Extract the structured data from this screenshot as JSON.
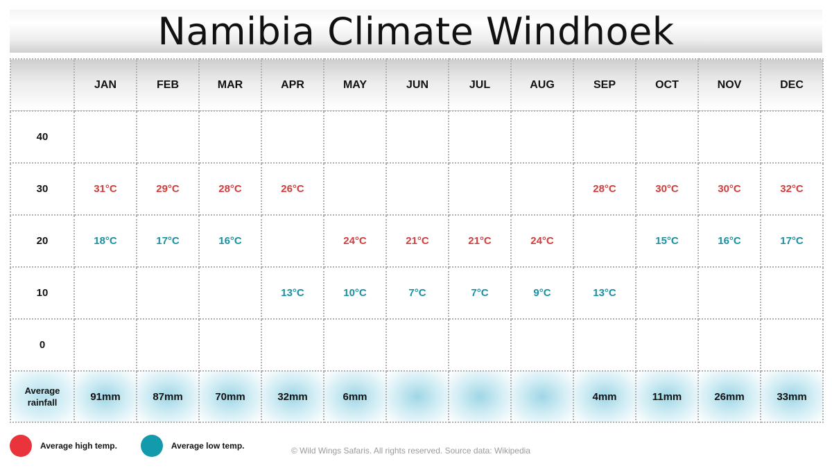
{
  "title": "Namibia Climate Windhoek",
  "chart_data": {
    "type": "table",
    "months": [
      "JAN",
      "FEB",
      "MAR",
      "APR",
      "MAY",
      "JUN",
      "JUL",
      "AUG",
      "SEP",
      "OCT",
      "NOV",
      "DEC"
    ],
    "scale_rows": [
      "40",
      "30",
      "20",
      "10",
      "0"
    ],
    "series": [
      {
        "name": "Average high temp.",
        "unit": "°C",
        "values": [
          31,
          29,
          28,
          26,
          24,
          21,
          21,
          24,
          28,
          30,
          30,
          32
        ]
      },
      {
        "name": "Average low temp.",
        "unit": "°C",
        "values": [
          18,
          17,
          16,
          13,
          10,
          7,
          7,
          9,
          13,
          15,
          16,
          17
        ]
      }
    ],
    "rainfall": {
      "label_line1": "Average",
      "label_line2": "rainfall",
      "values": [
        "91mm",
        "87mm",
        "70mm",
        "32mm",
        "6mm",
        "",
        "",
        "",
        "4mm",
        "11mm",
        "26mm",
        "33mm"
      ]
    }
  },
  "legend": {
    "high_label": "Average high temp.",
    "low_label": "Average low temp."
  },
  "colors": {
    "high": "#e8343a",
    "low": "#139aab"
  },
  "footer": "© Wild Wings Safaris. All rights reserved. Source data: Wikipedia"
}
